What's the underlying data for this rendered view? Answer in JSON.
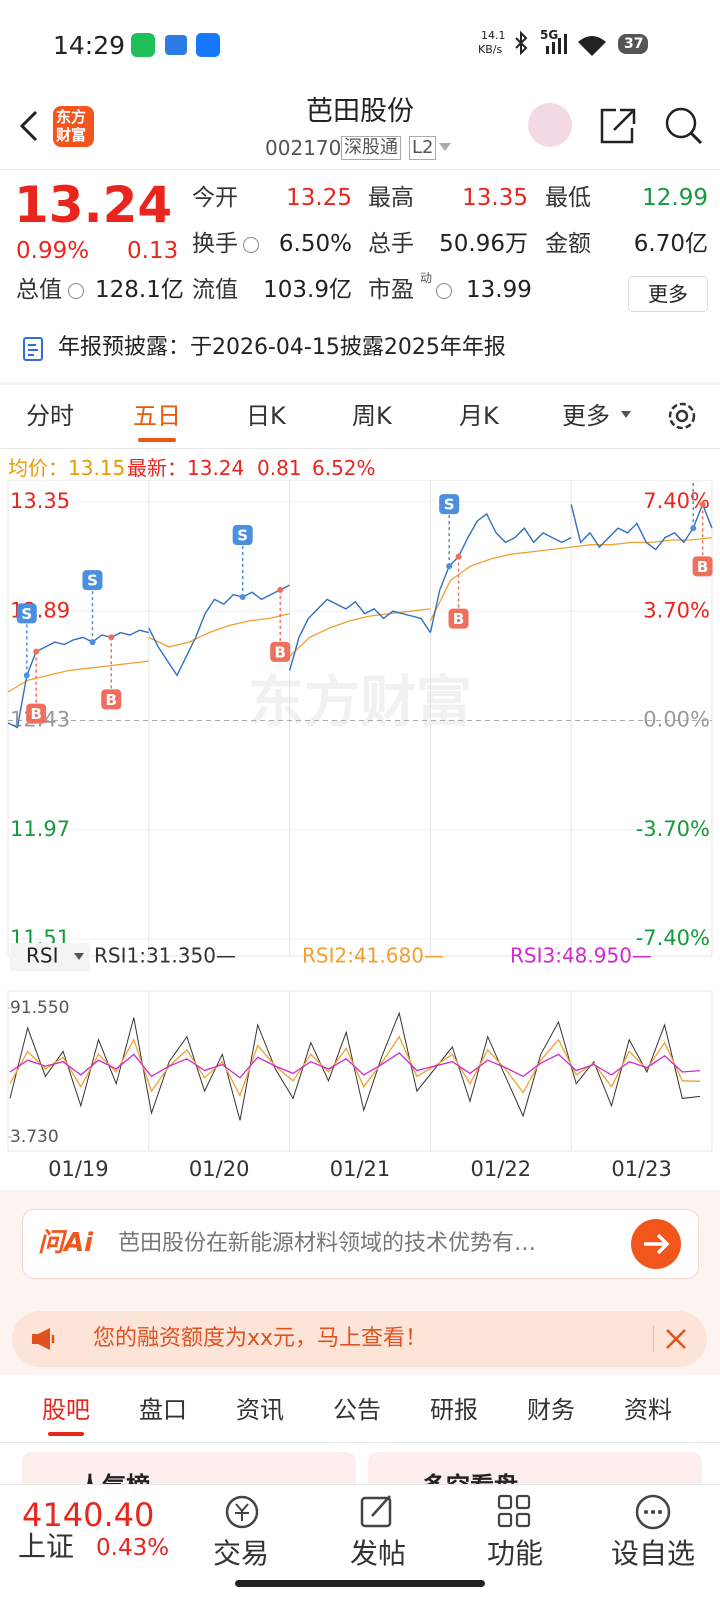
{
  "status_bar": {
    "time": "14:29",
    "net_speed": "14.1",
    "net_unit": "KB/s",
    "network": "5G",
    "battery": "37"
  },
  "header": {
    "logo": [
      "东方",
      "财富"
    ],
    "title": "芭田股份",
    "code": "002170",
    "tags": [
      "深股通",
      "L2"
    ]
  },
  "quote": {
    "price": "13.24",
    "change_pct": "0.99%",
    "change": "0.13",
    "fields": [
      {
        "label": "今开",
        "value": "13.25"
      },
      {
        "label": "最高",
        "value": "13.35"
      },
      {
        "label": "最低",
        "value": "12.99"
      },
      {
        "label": "换手",
        "value": "6.50%"
      },
      {
        "label": "总手",
        "value": "50.96万"
      },
      {
        "label": "金额",
        "value": "6.70亿"
      },
      {
        "label": "总值",
        "value": "128.1亿"
      },
      {
        "label": "流值",
        "value": "103.9亿"
      },
      {
        "label": "市盈",
        "value": "13.99"
      }
    ],
    "pe_tag": "动",
    "more": "更多"
  },
  "notice": "年报预披露：于2026-04-15披露2025年年报",
  "tabs": {
    "items": [
      "分时",
      "五日",
      "日K",
      "周K",
      "月K",
      "更多"
    ],
    "active": 1
  },
  "chart_info": {
    "avg_label": "均价：",
    "avg": "13.15",
    "latest_label": "最新：",
    "latest": "13.24",
    "change": "0.81",
    "change_pct": "6.52%"
  },
  "price_chart": {
    "type": "line",
    "ylim": [
      11.51,
      13.35
    ],
    "yticks": [
      13.35,
      12.89,
      12.43,
      11.97,
      11.51
    ],
    "y2lim": [
      -7.4,
      7.4
    ],
    "y2ticks": [
      {
        "value": 7.4,
        "label": "7.40%"
      },
      {
        "value": 3.7,
        "label": "3.70%"
      },
      {
        "value": 0,
        "label": "0.00%"
      },
      {
        "value": -3.7,
        "label": "-3.70%"
      },
      {
        "value": -7.4,
        "label": "-7.40%"
      }
    ],
    "price_color": "#2f6fc4",
    "avg_color": "#f0a030",
    "watermark": "东方财富",
    "days": [
      {
        "label": "01/19",
        "price": [
          12.42,
          12.4,
          12.62,
          12.72,
          12.74,
          12.76,
          12.75,
          12.77,
          12.78,
          12.76,
          12.79,
          12.78,
          12.8,
          12.79,
          12.81,
          12.8
        ],
        "avg": [
          12.55,
          12.6,
          12.62,
          12.64,
          12.65,
          12.66,
          12.67,
          12.68
        ],
        "trades": [
          {
            "label": "S",
            "index": 2
          },
          {
            "label": "B",
            "index": 3
          },
          {
            "label": "S",
            "index": 9
          },
          {
            "label": "B",
            "index": 11
          }
        ]
      },
      {
        "label": "01/20",
        "price": [
          12.82,
          12.74,
          12.68,
          12.62,
          12.7,
          12.78,
          12.88,
          12.94,
          12.92,
          12.96,
          12.95,
          12.97,
          12.94,
          12.96,
          12.98,
          13.0
        ],
        "avg": [
          12.78,
          12.74,
          12.76,
          12.8,
          12.83,
          12.85,
          12.86,
          12.88
        ],
        "trades": [
          {
            "label": "S",
            "index": 10
          },
          {
            "label": "B",
            "index": 14
          }
        ]
      },
      {
        "label": "01/21",
        "price": [
          12.64,
          12.78,
          12.86,
          12.9,
          12.94,
          12.92,
          12.9,
          12.93,
          12.88,
          12.9,
          12.86,
          12.89,
          12.88,
          12.87,
          12.86,
          12.8
        ],
        "avg": [
          12.7,
          12.78,
          12.82,
          12.85,
          12.87,
          12.88,
          12.89,
          12.9
        ],
        "trades": []
      },
      {
        "label": "01/22",
        "price": [
          12.8,
          12.98,
          13.08,
          13.12,
          13.2,
          13.27,
          13.3,
          13.22,
          13.18,
          13.2,
          13.24,
          13.18,
          13.22,
          13.2,
          13.18,
          13.2
        ],
        "avg": [
          12.85,
          13.02,
          13.08,
          13.11,
          13.13,
          13.14,
          13.15,
          13.16
        ],
        "trades": [
          {
            "label": "S",
            "index": 2
          },
          {
            "label": "B",
            "index": 3
          }
        ]
      },
      {
        "label": "01/23",
        "price": [
          13.34,
          13.18,
          13.22,
          13.16,
          13.2,
          13.24,
          13.22,
          13.26,
          13.18,
          13.15,
          13.2,
          13.22,
          13.18,
          13.24,
          13.34,
          13.24
        ],
        "avg": [
          13.16,
          13.17,
          13.17,
          13.18,
          13.18,
          13.19,
          13.19,
          13.2
        ],
        "trades": [
          {
            "label": "S",
            "index": 13
          },
          {
            "label": "B",
            "index": 14
          }
        ]
      }
    ]
  },
  "rsi_chart": {
    "type": "line",
    "selector": "RSI",
    "ylim": [
      3.73,
      91.55
    ],
    "yticks": [
      {
        "value": 91.55,
        "label": "91.550"
      },
      {
        "value": 3.73,
        "label": "3.730"
      }
    ],
    "series": [
      {
        "name": "RSI1:31.350—",
        "color": "#333333",
        "values": [
          30,
          78,
          45,
          62,
          25,
          70,
          40,
          85,
          20,
          55,
          72,
          35,
          60,
          15,
          80,
          50,
          30,
          68,
          42,
          75,
          22,
          58,
          88,
          35,
          50,
          65,
          28,
          72,
          45,
          18,
          60,
          82,
          40,
          55,
          25,
          70,
          48,
          80,
          30,
          31.35
        ]
      },
      {
        "name": "RSI2:41.680—",
        "color": "#f0a030",
        "values": [
          40,
          62,
          50,
          58,
          38,
          60,
          48,
          70,
          35,
          52,
          63,
          44,
          55,
          32,
          66,
          52,
          42,
          60,
          48,
          64,
          38,
          54,
          72,
          45,
          52,
          60,
          40,
          63,
          50,
          34,
          56,
          70,
          46,
          54,
          38,
          62,
          50,
          68,
          42,
          41.68
        ]
      },
      {
        "name": "RSI3:48.950—",
        "color": "#d02ad0",
        "values": [
          48,
          56,
          52,
          55,
          46,
          56,
          50,
          60,
          45,
          52,
          57,
          49,
          53,
          44,
          58,
          52,
          47,
          55,
          50,
          57,
          46,
          53,
          61,
          49,
          52,
          55,
          47,
          56,
          51,
          45,
          54,
          60,
          49,
          53,
          46,
          55,
          51,
          59,
          48,
          48.95
        ]
      }
    ]
  },
  "ai_bar": {
    "brand": "问Ai",
    "text": "芭田股份在新能源材料领域的技术优势有…"
  },
  "promo": "您的融资额度为xx元，马上查看！",
  "section_tabs": {
    "items": [
      "股吧",
      "盘口",
      "资讯",
      "公告",
      "研报",
      "财务",
      "资料"
    ],
    "active": 0
  },
  "cards": [
    "人气榜",
    "多空看盘"
  ],
  "bottom_bar": {
    "index_value": "4140.40",
    "index_name": "上证",
    "index_change": "0.43%",
    "items": [
      "交易",
      "发帖",
      "功能",
      "设自选"
    ]
  }
}
